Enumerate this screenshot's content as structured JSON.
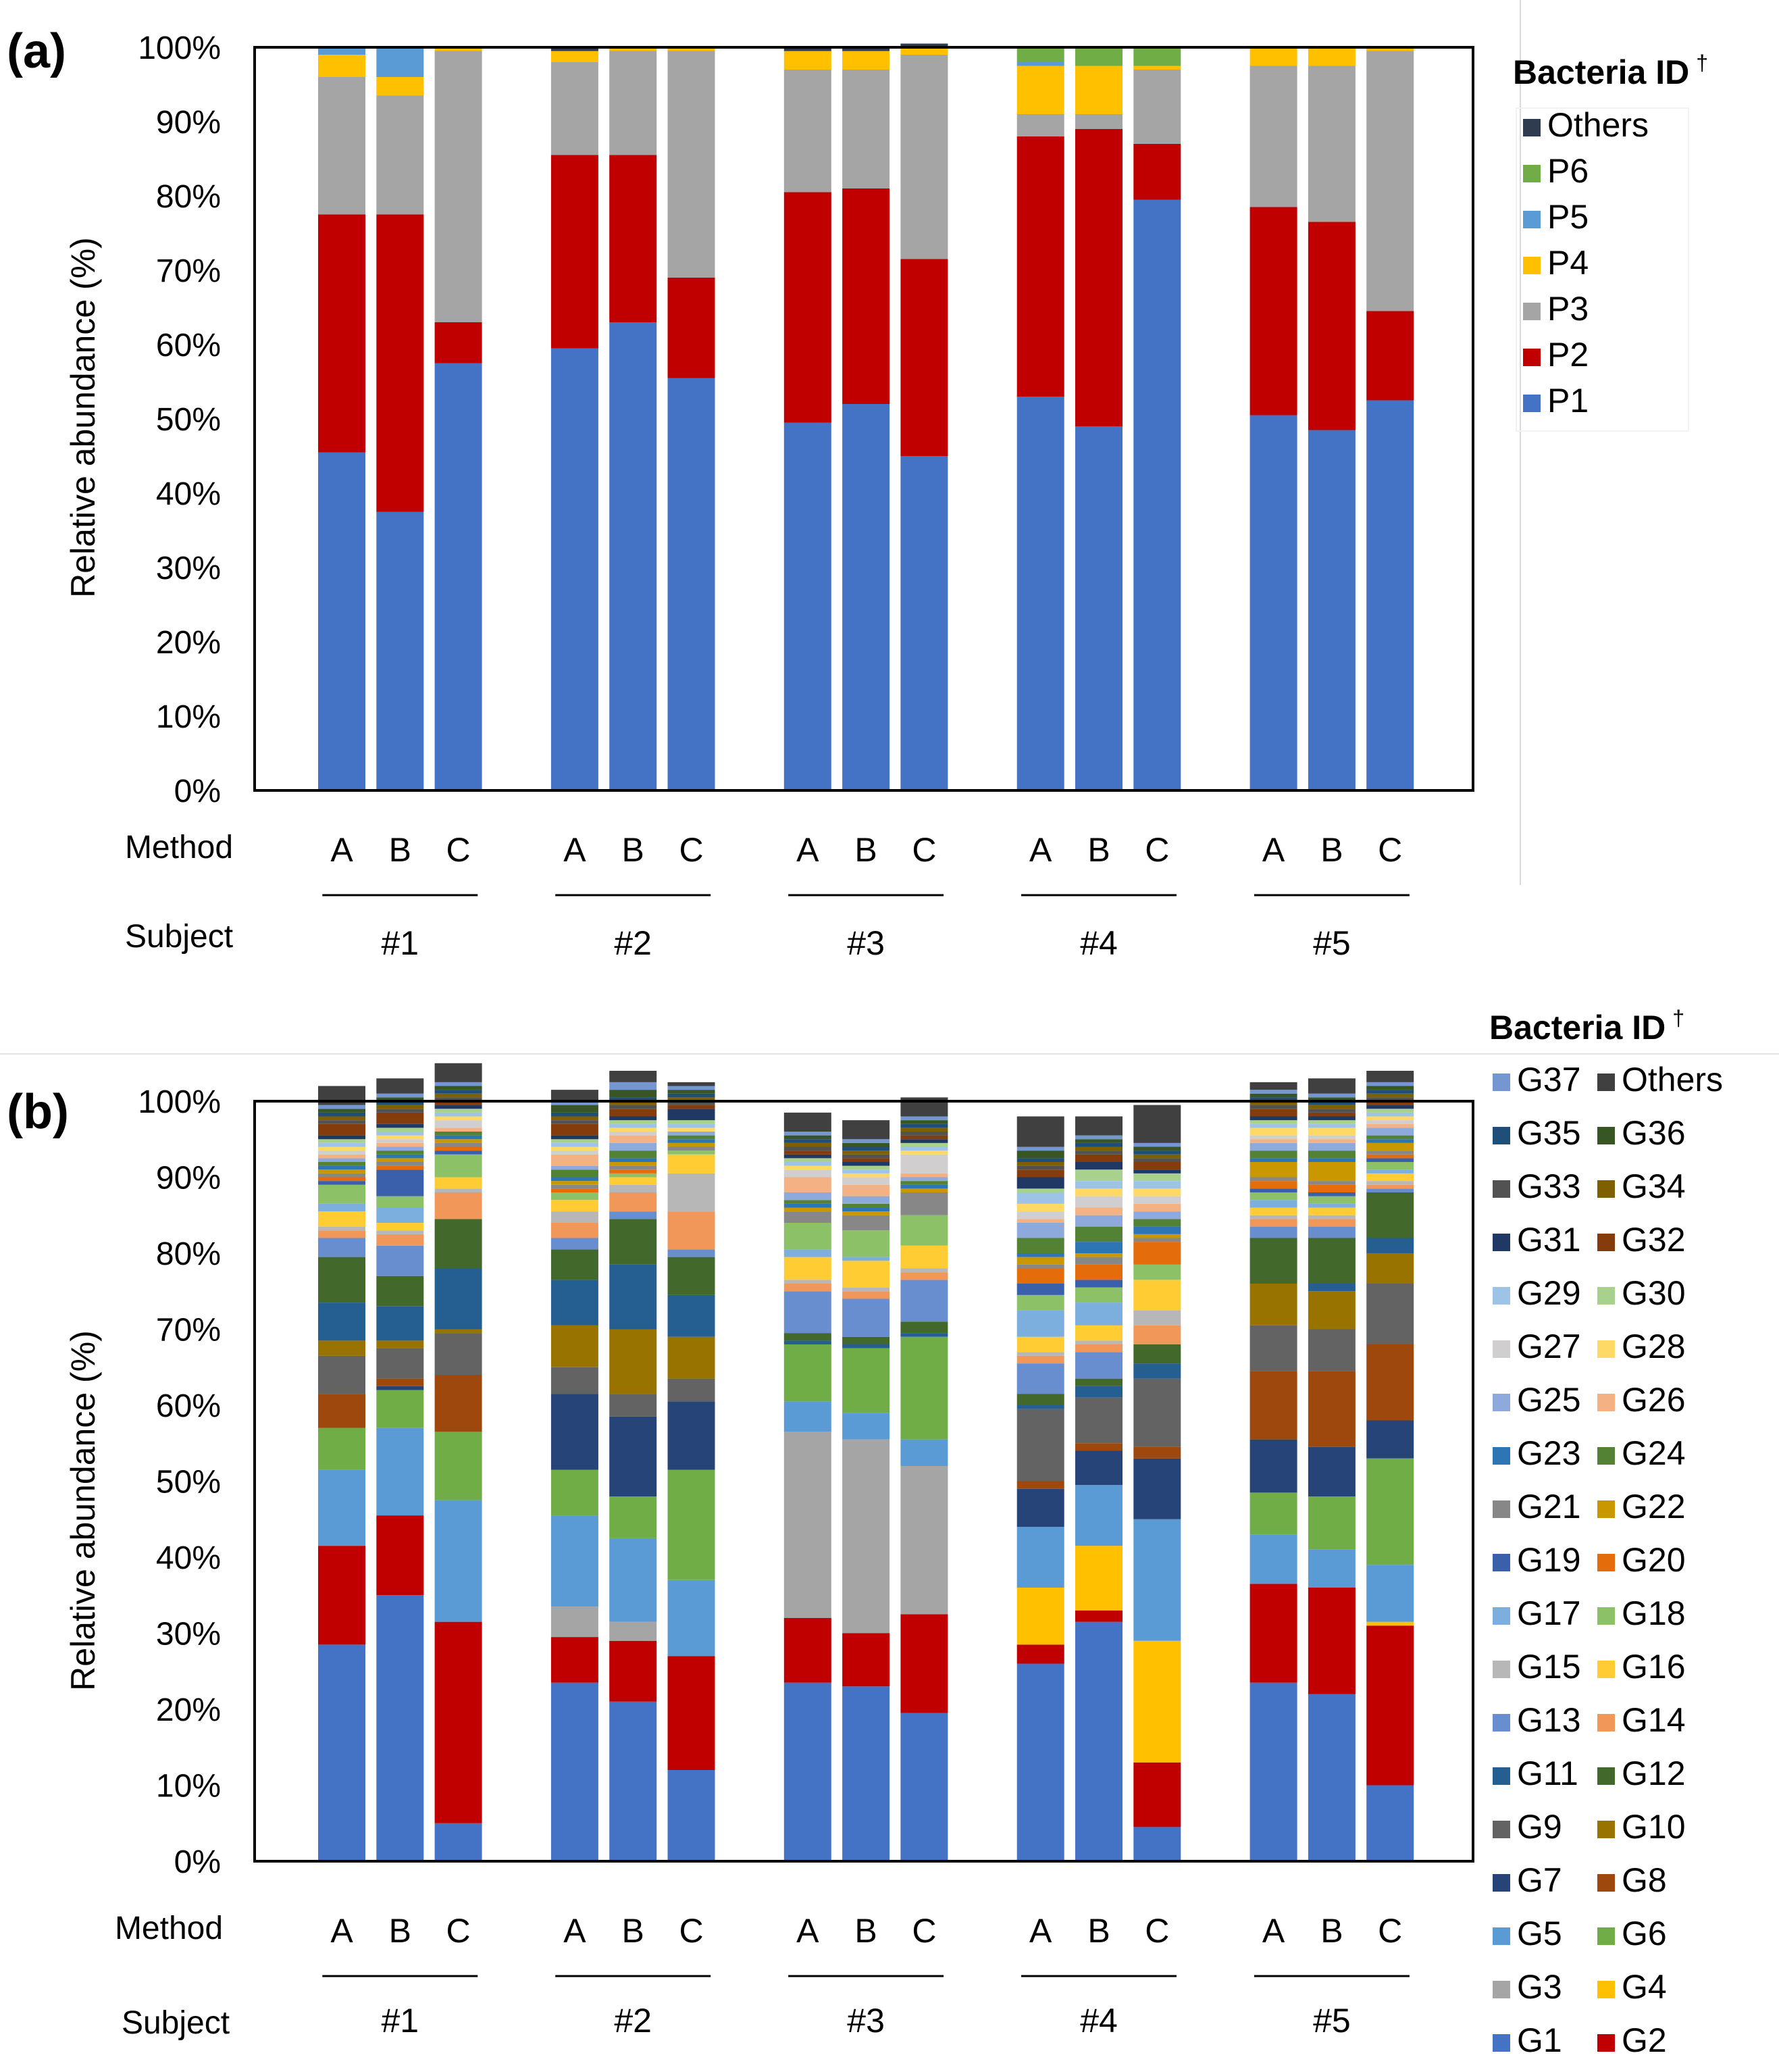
{
  "chart_data": [
    {
      "panel_label": "(a)",
      "type": "bar",
      "stacked": true,
      "ylabel": "Relative abundance (%)",
      "ylim": [
        0,
        100
      ],
      "y_ticks": [
        "0%",
        "10%",
        "20%",
        "30%",
        "40%",
        "50%",
        "60%",
        "70%",
        "80%",
        "90%",
        "100%"
      ],
      "method_row_label": "Method",
      "subject_row_label": "Subject",
      "subjects": [
        "#1",
        "#2",
        "#3",
        "#4",
        "#5"
      ],
      "methods": [
        "A",
        "B",
        "C"
      ],
      "categories": [
        "#1 A",
        "#1 B",
        "#1 C",
        "#2 A",
        "#2 B",
        "#2 C",
        "#3 A",
        "#3 B",
        "#3 C",
        "#4 A",
        "#4 B",
        "#4 C",
        "#5 A",
        "#5 B",
        "#5 C"
      ],
      "legend_title": "Bacteria ID",
      "legend_title_mark": "†",
      "legend_position": "right",
      "legend_order": [
        "Others",
        "P6",
        "P5",
        "P4",
        "P3",
        "P2",
        "P1"
      ],
      "series": [
        {
          "name": "P1",
          "color": "#4472C4",
          "values": [
            45.5,
            37.5,
            57.5,
            59.5,
            63,
            55.5,
            49.5,
            52,
            45,
            53,
            49,
            79.5,
            50.5,
            48.5,
            52.5
          ]
        },
        {
          "name": "P2",
          "color": "#C00000",
          "values": [
            32,
            40,
            5.5,
            26,
            22.5,
            13.5,
            31,
            29,
            26.5,
            35,
            40,
            7.5,
            28,
            28,
            12
          ]
        },
        {
          "name": "P3",
          "color": "#A5A5A5",
          "values": [
            18.5,
            16,
            36.5,
            12.5,
            14,
            30.5,
            16.5,
            16,
            27.5,
            3,
            2,
            10,
            19,
            21,
            35
          ]
        },
        {
          "name": "P4",
          "color": "#FFC000",
          "values": [
            3,
            2.5,
            0.5,
            1.5,
            0.5,
            0.5,
            2.5,
            2.5,
            1,
            6.5,
            6.5,
            0.5,
            2.5,
            2.5,
            0.5
          ]
        },
        {
          "name": "P5",
          "color": "#5B9BD5",
          "values": [
            1,
            4,
            0,
            0,
            0,
            0,
            0,
            0,
            0,
            0.5,
            0,
            0,
            0,
            0,
            0
          ]
        },
        {
          "name": "P6",
          "color": "#70AD47",
          "values": [
            0,
            0,
            0,
            0,
            0,
            0,
            0,
            0,
            0,
            2,
            2.5,
            2.5,
            0,
            0,
            0
          ]
        },
        {
          "name": "Others",
          "color": "#2F3C4F",
          "values": [
            0,
            0,
            0,
            0.5,
            0,
            0,
            0.5,
            0.5,
            0.5,
            0,
            0,
            0,
            0,
            0,
            0
          ]
        }
      ]
    },
    {
      "panel_label": "(b)",
      "type": "bar",
      "stacked": true,
      "ylabel": "Relative abundance (%)",
      "ylim": [
        0,
        100
      ],
      "y_ticks": [
        "0%",
        "10%",
        "20%",
        "30%",
        "40%",
        "50%",
        "60%",
        "70%",
        "80%",
        "90%",
        "100%"
      ],
      "method_row_label": "Method",
      "subject_row_label": "Subject",
      "subjects": [
        "#1",
        "#2",
        "#3",
        "#4",
        "#5"
      ],
      "methods": [
        "A",
        "B",
        "C"
      ],
      "categories": [
        "#1 A",
        "#1 B",
        "#1 C",
        "#2 A",
        "#2 B",
        "#2 C",
        "#3 A",
        "#3 B",
        "#3 C",
        "#4 A",
        "#4 B",
        "#4 C",
        "#5 A",
        "#5 B",
        "#5 C"
      ],
      "legend_title": "Bacteria ID",
      "legend_title_mark": "†",
      "legend_position": "right",
      "legend_order": [
        "G37",
        "Others",
        "G35",
        "G36",
        "G33",
        "G34",
        "G31",
        "G32",
        "G29",
        "G30",
        "G27",
        "G28",
        "G25",
        "G26",
        "G23",
        "G24",
        "G21",
        "G22",
        "G19",
        "G20",
        "G17",
        "G18",
        "G15",
        "G16",
        "G13",
        "G14",
        "G11",
        "G12",
        "G9",
        "G10",
        "G7",
        "G8",
        "G5",
        "G6",
        "G3",
        "G4",
        "G1",
        "G2"
      ],
      "series": [
        {
          "name": "G1",
          "color": "#4472C4",
          "values": [
            28.5,
            35,
            5,
            23.5,
            21,
            12,
            23.5,
            23,
            19.5,
            26,
            31.5,
            4.5,
            23.5,
            22,
            10
          ]
        },
        {
          "name": "G2",
          "color": "#C00000",
          "values": [
            13,
            10.5,
            26.5,
            6,
            8,
            15,
            8.5,
            7,
            13,
            2.5,
            1.5,
            8.5,
            13,
            14,
            21
          ]
        },
        {
          "name": "G3",
          "color": "#A5A5A5",
          "values": [
            0,
            0,
            0,
            4,
            2.5,
            0,
            24.5,
            25.5,
            19.5,
            0,
            0,
            0,
            0,
            0,
            0
          ]
        },
        {
          "name": "G4",
          "color": "#FFC000",
          "values": [
            0,
            0,
            0,
            0,
            0,
            0,
            0,
            0,
            0,
            7.5,
            8.5,
            16,
            0,
            0,
            0.5
          ]
        },
        {
          "name": "G5",
          "color": "#5B9BD5",
          "values": [
            10,
            11.5,
            16,
            12,
            11,
            10,
            4,
            3.5,
            3.5,
            8,
            8,
            16,
            6.5,
            5,
            7.5
          ]
        },
        {
          "name": "G6",
          "color": "#70AD47",
          "values": [
            5.5,
            5,
            9,
            6,
            5.5,
            14.5,
            7.5,
            8.5,
            13.5,
            0,
            0,
            0,
            5.5,
            7,
            14
          ]
        },
        {
          "name": "G7",
          "color": "#264478",
          "values": [
            0,
            0.5,
            0,
            10,
            10.5,
            9,
            0,
            0,
            0,
            5,
            4.5,
            8,
            7,
            6.5,
            5
          ]
        },
        {
          "name": "G8",
          "color": "#9E480E",
          "values": [
            4.5,
            1,
            7.5,
            0,
            0,
            0,
            0,
            0,
            0,
            1,
            1,
            1.5,
            9,
            10,
            10
          ]
        },
        {
          "name": "G9",
          "color": "#636363",
          "values": [
            5,
            4,
            5.5,
            3.5,
            3,
            3,
            0,
            0,
            0,
            9.5,
            6,
            9,
            6,
            5.5,
            8
          ]
        },
        {
          "name": "G10",
          "color": "#997300",
          "values": [
            2,
            1,
            0.5,
            5.5,
            8.5,
            5.5,
            0,
            0,
            0,
            0,
            0,
            0,
            5.5,
            5,
            4
          ]
        },
        {
          "name": "G11",
          "color": "#255E91",
          "values": [
            5,
            4.5,
            8,
            6,
            8.5,
            5.5,
            0.5,
            0.5,
            0.5,
            0.5,
            1.5,
            2,
            0,
            1,
            2
          ]
        },
        {
          "name": "G12",
          "color": "#43682B",
          "values": [
            6,
            4,
            6.5,
            4,
            6,
            5,
            1,
            1,
            1.5,
            1.5,
            1,
            2.5,
            6,
            6,
            6
          ]
        },
        {
          "name": "G13",
          "color": "#698ED0",
          "values": [
            2.5,
            4,
            0,
            1.5,
            1,
            1,
            5.5,
            5,
            5.5,
            4,
            3.5,
            0,
            1.5,
            1.5,
            0.5
          ]
        },
        {
          "name": "G14",
          "color": "#F1975A",
          "values": [
            1,
            1.5,
            3.5,
            2,
            2.5,
            5,
            1,
            1,
            1,
            1,
            1,
            2.5,
            1,
            1,
            0.5
          ]
        },
        {
          "name": "G15",
          "color": "#B7B7B7",
          "values": [
            0.5,
            0.5,
            0.5,
            1.5,
            1,
            5,
            0.5,
            0.5,
            0.5,
            0.5,
            0.5,
            2,
            0.5,
            0.5,
            0.5
          ]
        },
        {
          "name": "G16",
          "color": "#FFCD33",
          "values": [
            2,
            1,
            1.5,
            1.5,
            1,
            2.5,
            3,
            3.5,
            3,
            2,
            2,
            4,
            1,
            1,
            1
          ]
        },
        {
          "name": "G17",
          "color": "#7CAFDD",
          "values": [
            1,
            2,
            0,
            0,
            0,
            0,
            1,
            0.5,
            0,
            3.5,
            3,
            0,
            1,
            0.5,
            0.5
          ]
        },
        {
          "name": "G18",
          "color": "#8CC168",
          "values": [
            2.5,
            1.5,
            3,
            1,
            0.5,
            0.5,
            3.5,
            3.5,
            4,
            2,
            2,
            2,
            1,
            1,
            1
          ]
        },
        {
          "name": "G19",
          "color": "#3A5FAB",
          "values": [
            0.5,
            3.5,
            0.5,
            0,
            0,
            0,
            0,
            0,
            0,
            1.5,
            1,
            0,
            0.5,
            0.5,
            0.5
          ]
        },
        {
          "name": "G20",
          "color": "#E46C0A",
          "values": [
            0.5,
            0.5,
            0.5,
            0.5,
            0.5,
            0,
            0,
            0,
            0,
            2,
            2,
            3,
            1,
            1,
            0.5
          ]
        },
        {
          "name": "G21",
          "color": "#878787",
          "values": [
            0.5,
            0.5,
            0.5,
            0.5,
            0.5,
            0.5,
            1.5,
            2,
            3,
            0.5,
            1,
            0.5,
            0.5,
            0.5,
            0.5
          ]
        },
        {
          "name": "G22",
          "color": "#C99700",
          "values": [
            0.5,
            0.5,
            0.5,
            0.5,
            0.5,
            0.5,
            0.5,
            0.5,
            0.5,
            1,
            0.5,
            0.5,
            2,
            2.5,
            1
          ]
        },
        {
          "name": "G23",
          "color": "#2E75B6",
          "values": [
            0.5,
            0.5,
            0.5,
            0.5,
            0.5,
            0.5,
            0.5,
            0.5,
            0.5,
            0.5,
            1.5,
            1,
            0.5,
            0.5,
            0.5
          ]
        },
        {
          "name": "G24",
          "color": "#548235",
          "values": [
            0.5,
            0.5,
            0.5,
            1,
            1,
            0.5,
            0.5,
            0.5,
            0.5,
            2,
            2,
            1,
            1,
            1,
            0.5
          ]
        },
        {
          "name": "G25",
          "color": "#8EA9DB",
          "values": [
            0.5,
            0.5,
            0,
            0.5,
            1,
            0.5,
            1,
            1,
            0.5,
            2,
            1.5,
            1,
            1,
            1,
            1
          ]
        },
        {
          "name": "G26",
          "color": "#F4B183",
          "values": [
            0.5,
            0.5,
            0.5,
            1.5,
            1,
            0,
            2,
            1.5,
            0.5,
            0.5,
            1,
            1,
            0.5,
            0.5,
            0.5
          ]
        },
        {
          "name": "G27",
          "color": "#D0CECE",
          "values": [
            0.5,
            0.5,
            1,
            0.5,
            0.5,
            0,
            1,
            1,
            2.5,
            1,
            1.5,
            1,
            0.5,
            0.5,
            0.5
          ]
        },
        {
          "name": "G28",
          "color": "#FFD966",
          "values": [
            0.5,
            0.5,
            0.5,
            0.5,
            0.5,
            0.5,
            0.5,
            0.5,
            0.5,
            1,
            1,
            1,
            1,
            1,
            0.5
          ]
        },
        {
          "name": "G29",
          "color": "#9DC3E6",
          "values": [
            0.5,
            0.5,
            0.5,
            0.5,
            0.5,
            0.5,
            0.5,
            0.5,
            0.5,
            1.5,
            1,
            1,
            0.5,
            0.5,
            0.5
          ]
        },
        {
          "name": "G30",
          "color": "#A9D18E",
          "values": [
            0.5,
            0.5,
            0.5,
            0.5,
            0.5,
            0.5,
            0.5,
            0.5,
            0.5,
            0.5,
            1.5,
            1,
            0.5,
            0.5,
            0.5
          ]
        },
        {
          "name": "G31",
          "color": "#203864",
          "values": [
            0.5,
            0.5,
            0.5,
            0.5,
            0.5,
            1.5,
            0.5,
            0.5,
            0.5,
            1.5,
            1,
            0.5,
            0.5,
            0.5,
            0.5
          ]
        },
        {
          "name": "G32",
          "color": "#843C0C",
          "values": [
            1.5,
            1.5,
            0.5,
            1.5,
            1,
            0.5,
            0.5,
            0.5,
            0.5,
            1,
            1,
            1,
            1,
            0.5,
            0.5
          ]
        },
        {
          "name": "G33",
          "color": "#525252",
          "values": [
            0.5,
            0.5,
            0.5,
            0.5,
            0.5,
            0.5,
            0.5,
            0.5,
            0.5,
            0.5,
            0.5,
            0.5,
            0.5,
            0.5,
            0.5
          ]
        },
        {
          "name": "G34",
          "color": "#7F6000",
          "values": [
            0.5,
            0.5,
            0.5,
            0.5,
            0.5,
            0.5,
            0.5,
            0.5,
            0.5,
            0.5,
            0.5,
            0.5,
            0.5,
            0.5,
            0.5
          ]
        },
        {
          "name": "G35",
          "color": "#1F4E79",
          "values": [
            0.5,
            0.5,
            0.5,
            0.5,
            0.5,
            0.5,
            0.5,
            0.5,
            0.5,
            0.5,
            0.5,
            0.5,
            0.5,
            0.5,
            0.5
          ]
        },
        {
          "name": "G36",
          "color": "#375623",
          "values": [
            0.5,
            0.5,
            0.5,
            1,
            1,
            0.5,
            0.5,
            0.5,
            0.5,
            1,
            0.5,
            0.5,
            0.5,
            0.5,
            0.5
          ]
        },
        {
          "name": "G37",
          "color": "#7497D2",
          "values": [
            0.5,
            0.5,
            0.5,
            0.5,
            1,
            0.5,
            0.5,
            0.5,
            0.5,
            0.5,
            0.5,
            0.5,
            0.5,
            0.5,
            0.5
          ]
        },
        {
          "name": "Others",
          "color": "#404040",
          "values": [
            2.5,
            2,
            2.5,
            1.5,
            1.5,
            0.5,
            2.5,
            2.5,
            2.5,
            4,
            2.5,
            5,
            1,
            2,
            1.5
          ]
        }
      ]
    }
  ]
}
